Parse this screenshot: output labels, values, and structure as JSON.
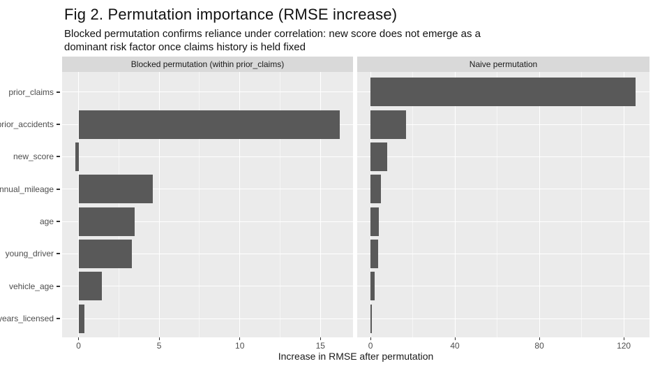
{
  "title": "Fig 2. Permutation importance (RMSE increase)",
  "subtitle_line1": "Blocked permutation confirms reliance under correlation: new score does not emerge as a",
  "subtitle_line2": "dominant risk factor once claims history is held fixed",
  "chart_data": {
    "type": "bar",
    "orientation": "horizontal",
    "title": "Fig 2. Permutation importance (RMSE increase)",
    "xlabel": "Increase in RMSE after permutation",
    "ylabel": "",
    "grid": "major-white-on-grey",
    "categories": [
      "prior_claims",
      "prior_accidents",
      "new_score",
      "annual_mileage",
      "age",
      "young_driver",
      "vehicle_age",
      "years_licensed"
    ],
    "panels": [
      {
        "label": "Blocked permutation (within prior_claims)",
        "values": [
          0,
          16.2,
          -0.2,
          4.6,
          3.5,
          3.3,
          1.45,
          0.35
        ],
        "x_ticks": [
          0,
          5,
          10,
          15
        ],
        "x_minor_ticks": [
          2.5,
          7.5,
          12.5
        ],
        "xlim": [
          -1.02,
          17.02
        ]
      },
      {
        "label": "Naive permutation",
        "values": [
          125.5,
          16.8,
          7.8,
          5.0,
          4.0,
          3.5,
          2.1,
          0.5
        ],
        "x_ticks": [
          0,
          40,
          80,
          120
        ],
        "x_minor_ticks": [
          20,
          60,
          100
        ],
        "xlim": [
          -6.3,
          132.2
        ]
      }
    ],
    "colors": {
      "bar": "#595959",
      "panel_background": "#EBEBEB",
      "strip_background": "#D9D9D9",
      "gridline": "#FFFFFF",
      "axis_text": "#4D4D4D",
      "tick_mark": "#333333",
      "title_text": "#111111"
    }
  }
}
